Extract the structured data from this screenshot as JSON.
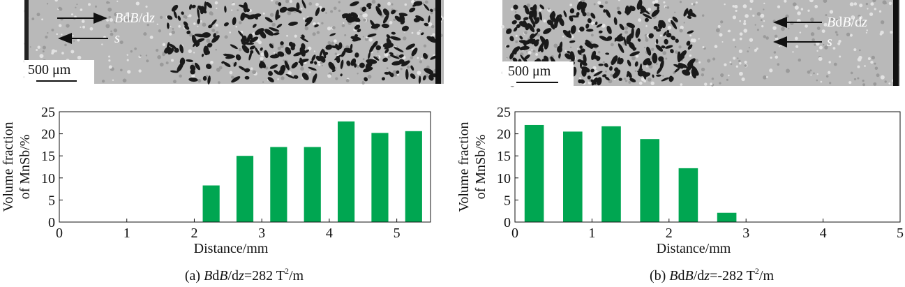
{
  "images": [
    {
      "arrow_labels": [
        [
          "B",
          "d",
          "B",
          "/d",
          "z"
        ],
        "s"
      ],
      "scale_bar": "500 μm"
    },
    {
      "arrow_labels": [
        [
          "B",
          "d",
          "B",
          "/d",
          "z"
        ],
        "s"
      ],
      "scale_bar": "500 μm"
    }
  ],
  "chart_data": [
    {
      "type": "bar",
      "x": [
        2.25,
        2.75,
        3.25,
        3.75,
        4.25,
        4.75,
        5.25
      ],
      "values": [
        8.3,
        15,
        17,
        17,
        22.8,
        20.2,
        20.6
      ],
      "color": "#00a651",
      "xlim": [
        0,
        5.5
      ],
      "xticks": [
        0,
        1,
        2,
        3,
        4,
        5
      ],
      "ylim": [
        0,
        25
      ],
      "yticks": [
        0,
        5,
        10,
        15,
        20,
        25
      ],
      "xlabel": "Distance/mm",
      "ylabel": [
        "Volume fraction",
        "of MnSb/%"
      ],
      "caption": [
        "(a) ",
        "B",
        "d",
        "B",
        "/d",
        "z",
        "=282 T",
        "2",
        "/m"
      ]
    },
    {
      "type": "bar",
      "x": [
        0.25,
        0.75,
        1.25,
        1.75,
        2.25,
        2.75
      ],
      "values": [
        22,
        20.5,
        21.7,
        18.8,
        12.2,
        2.1
      ],
      "color": "#00a651",
      "xlim": [
        0,
        5
      ],
      "xticks": [
        0,
        1,
        2,
        3,
        4,
        5
      ],
      "ylim": [
        0,
        25
      ],
      "yticks": [
        0,
        5,
        10,
        15,
        20,
        25
      ],
      "xlabel": "Distance/mm",
      "ylabel": [
        "Volume fraction",
        "of MnSb/%"
      ],
      "caption": [
        "(b) ",
        "B",
        "d",
        "B",
        "/d",
        "z",
        "=-282 T",
        "2",
        "/m"
      ]
    }
  ]
}
